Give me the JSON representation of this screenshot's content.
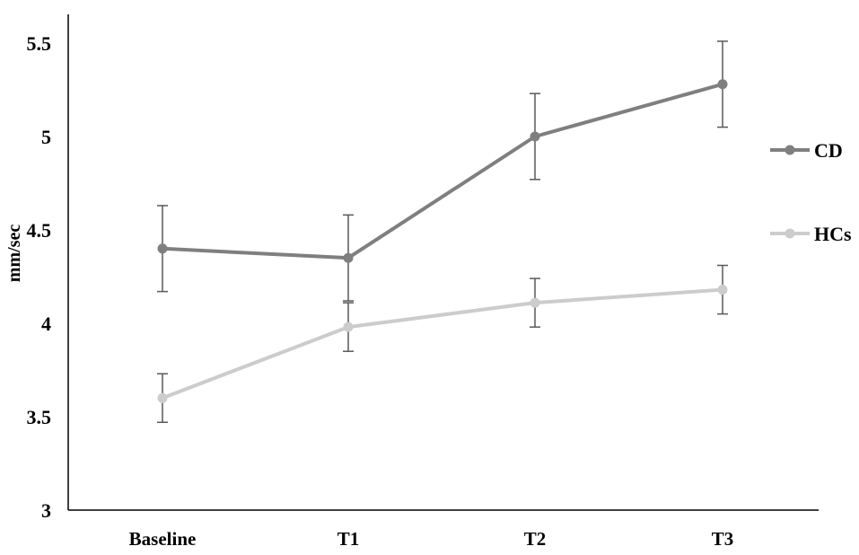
{
  "chart_data": {
    "type": "line",
    "title": "",
    "xlabel": "",
    "ylabel": "mm/sec",
    "ylim": [
      3,
      5.5
    ],
    "yticks": [
      3,
      3.5,
      4,
      4.5,
      5,
      5.5
    ],
    "ytick_labels": [
      "3",
      "3.5",
      "4",
      "4.5",
      "5",
      "5.5"
    ],
    "categories": [
      "Baseline",
      "T1",
      "T2",
      "T3"
    ],
    "grid": false,
    "legend_position": "right",
    "series": [
      {
        "name": "CD",
        "color": "#7f7f7f",
        "values": [
          4.4,
          4.35,
          5.0,
          5.28
        ],
        "error": [
          0.23,
          0.23,
          0.23,
          0.23
        ]
      },
      {
        "name": "HCs",
        "color": "#cccccc",
        "values": [
          3.6,
          3.98,
          4.11,
          4.18
        ],
        "error": [
          0.13,
          0.13,
          0.13,
          0.13
        ]
      }
    ]
  }
}
